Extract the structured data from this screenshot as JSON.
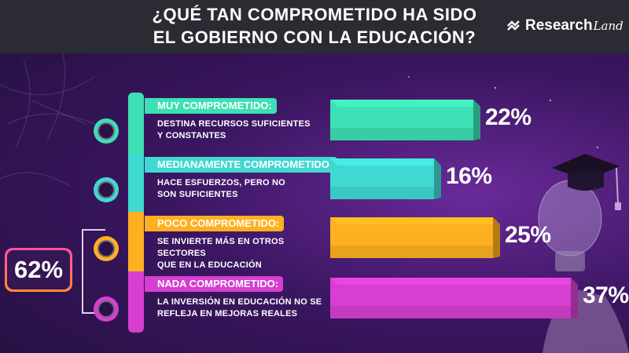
{
  "header": {
    "title_line1": "¿QUÉ TAN COMPROMETIDO HA SIDO",
    "title_line2": "EL GOBIERNO CON LA EDUCACIÓN?",
    "logo_word": "Research",
    "logo_script": "Land"
  },
  "summary": {
    "value": "62%"
  },
  "chart_data": {
    "type": "bar",
    "orientation": "horizontal",
    "title": "¿QUÉ TAN COMPROMETIDO HA SIDO EL GOBIERNO CON LA EDUCACIÓN?",
    "categories": [
      "MUY COMPROMETIDO:",
      "MEDIANAMENTE COMPROMETIDO:",
      "POCO COMPROMETIDO:",
      "NADA COMPROMETIDO:"
    ],
    "values": [
      22,
      16,
      25,
      37
    ],
    "unit": "%",
    "grid": false,
    "bracket_total": {
      "categories": [
        "POCO COMPROMETIDO:",
        "NADA COMPROMETIDO:"
      ],
      "value": 62
    }
  },
  "rows": [
    {
      "title": "MUY COMPROMETIDO:",
      "desc1": "DESTINA RECURSOS SUFICIENTES",
      "desc2": "Y CONSTANTES",
      "value_label": "22%",
      "color": "#3ddfb4",
      "face": "happy-face-icon"
    },
    {
      "title": "MEDIANAMENTE COMPROMETIDO:",
      "desc1": "HACE ESFUERZOS, PERO NO",
      "desc2": "SON SUFICIENTES",
      "value_label": "16%",
      "color": "#3fd9d2",
      "face": "slight-smile-face-icon"
    },
    {
      "title": "POCO COMPROMETIDO:",
      "desc1": "SE INVIERTE MÁS EN OTROS SECTORES",
      "desc2": "QUE EN LA EDUCACIÓN",
      "value_label": "25%",
      "color": "#ffb020",
      "face": "neutral-face-icon"
    },
    {
      "title": "NADA COMPROMETIDO:",
      "desc1": "LA INVERSIÓN EN EDUCACIÓN NO SE",
      "desc2": "REFLEJA EN MEJORAS REALES",
      "value_label": "37%",
      "color": "#d63fcf",
      "face": "sad-face-icon"
    }
  ]
}
